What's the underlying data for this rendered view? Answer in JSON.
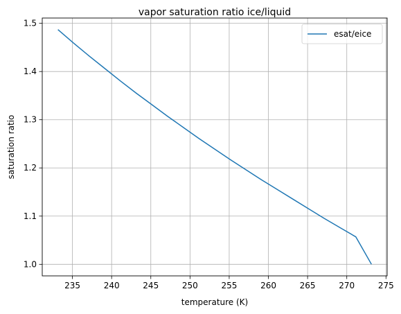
{
  "chart_data": {
    "type": "line",
    "title": "vapor saturation ratio ice/liquid",
    "xlabel": "temperature (K)",
    "ylabel": "saturation ratio",
    "xlim": [
      231.15,
      275.15
    ],
    "ylim": [
      0.976,
      1.511
    ],
    "xticks": [
      235,
      240,
      245,
      250,
      255,
      260,
      265,
      270,
      275
    ],
    "yticks": [
      1.0,
      1.1,
      1.2,
      1.3,
      1.4,
      1.5
    ],
    "grid": true,
    "legend_position": "top-right",
    "series": [
      {
        "name": "esat/eice",
        "color": "#1f77b4",
        "x": [
          233.15,
          235.15,
          237.15,
          239.15,
          241.15,
          243.15,
          245.15,
          247.15,
          249.15,
          251.15,
          253.15,
          255.15,
          257.15,
          259.15,
          261.15,
          263.15,
          265.15,
          267.15,
          269.15,
          271.15,
          273.15
        ],
        "y": [
          1.487,
          1.459,
          1.432,
          1.406,
          1.38,
          1.355,
          1.331,
          1.307,
          1.284,
          1.261,
          1.239,
          1.217,
          1.196,
          1.175,
          1.155,
          1.135,
          1.115,
          1.095,
          1.076,
          1.057,
          1.0
        ]
      }
    ]
  }
}
